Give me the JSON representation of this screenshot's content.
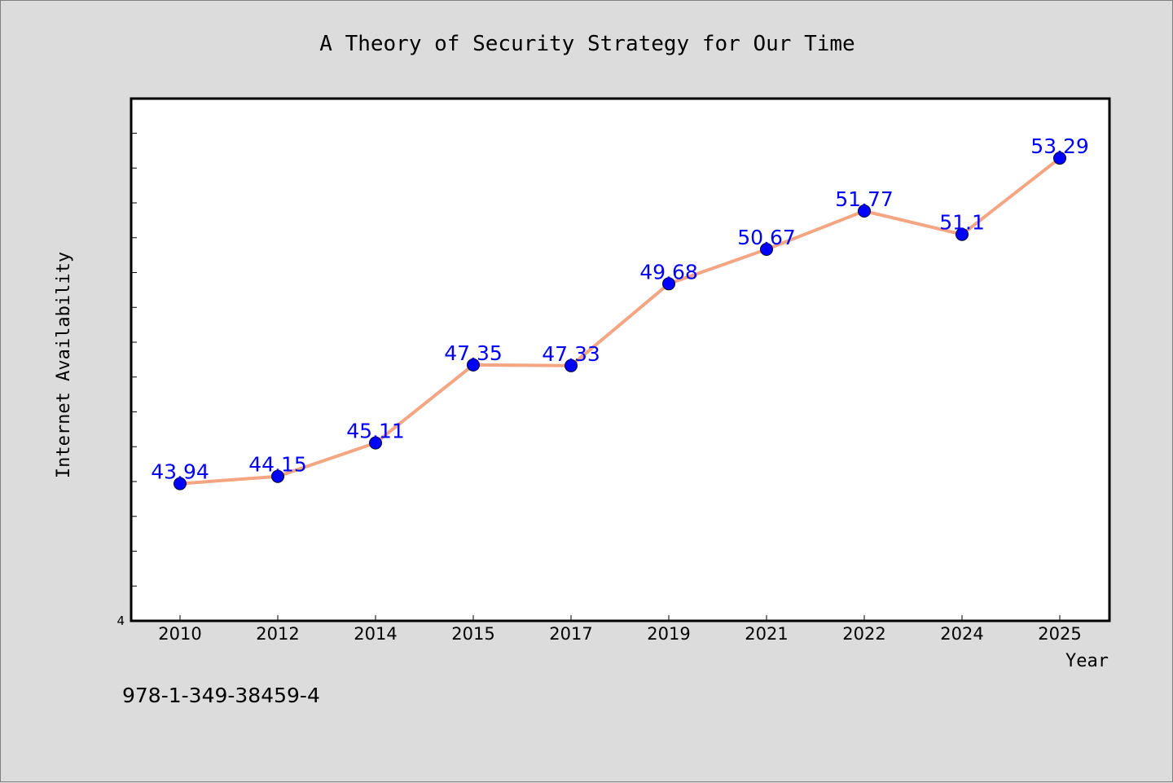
{
  "colors": {
    "background": "#dcdcdc",
    "plot_background": "#ffffff",
    "line": "#f4a582",
    "marker": "#0000ff",
    "data_label": "#0000ff"
  },
  "footer_text": "978-1-349-38459-4",
  "chart_data": {
    "type": "line",
    "title": "A Theory of Security Strategy for Our Time",
    "xlabel": "Year",
    "ylabel": "Internet Availability",
    "categories": [
      "2010",
      "2012",
      "2014",
      "2015",
      "2017",
      "2019",
      "2021",
      "2022",
      "2024",
      "2025"
    ],
    "series": [
      {
        "values": [
          43.94,
          44.15,
          45.11,
          47.35,
          47.33,
          49.68,
          50.67,
          51.77,
          51.1,
          53.29
        ]
      }
    ],
    "data_labels": [
      "43.94",
      "44.15",
      "45.11",
      "47.35",
      "47.33",
      "49.68",
      "50.67",
      "51.77",
      "51.1",
      "53.29"
    ],
    "y_tick_labels": [
      "4"
    ],
    "ylim": [
      40,
      55
    ],
    "grid": false,
    "legend": "none"
  }
}
